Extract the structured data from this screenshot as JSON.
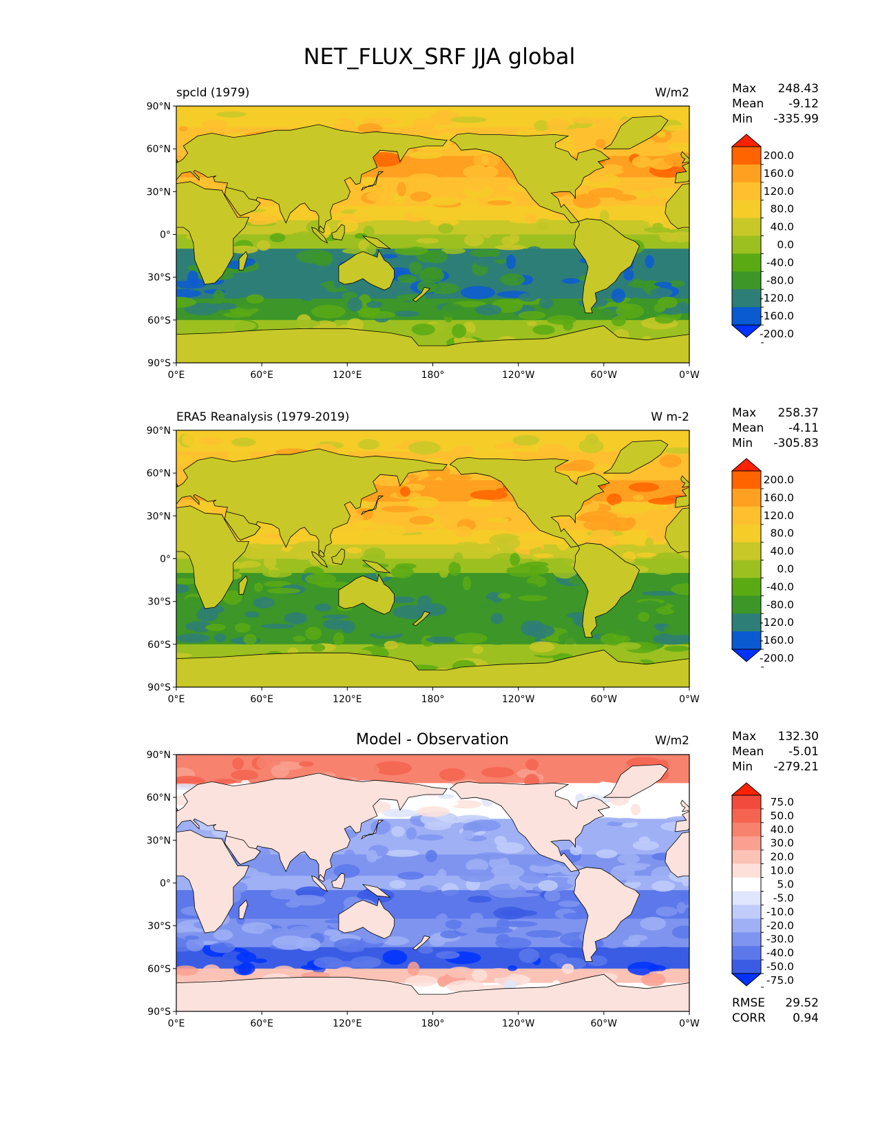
{
  "figure": {
    "title": "NET_FLUX_SRF JJA global",
    "lat_ticks": [
      "90°N",
      "60°N",
      "30°N",
      "0°",
      "30°S",
      "60°S",
      "90°S"
    ],
    "lon_ticks": [
      "0°E",
      "60°E",
      "120°E",
      "180°",
      "120°W",
      "60°W",
      "0°W"
    ]
  },
  "chart_data": [
    {
      "type": "heatmap",
      "name": "model",
      "title": "",
      "subtitle_left": "spcld (1979)",
      "units": "W/m2",
      "stats": [
        {
          "label": "Max",
          "value": "248.43"
        },
        {
          "label": "Mean",
          "value": "-9.12"
        },
        {
          "label": "Min",
          "value": "-335.99"
        }
      ],
      "colorbar": {
        "levels": [
          "200.0",
          "160.0",
          "120.0",
          "80.0",
          "40.0",
          "0.0",
          "-40.0",
          "-80.0",
          "-120.0",
          "-160.0",
          "-200.0"
        ],
        "colors": [
          "#ff2200",
          "#ff6400",
          "#ffa020",
          "#ffc030",
          "#f5cc28",
          "#c8c828",
          "#9cc020",
          "#5aaa14",
          "#3c9628",
          "#2e7e78",
          "#0a5ad2",
          "#0032ff"
        ]
      },
      "xlim": [
        0,
        360
      ],
      "ylim": [
        -90,
        90
      ]
    },
    {
      "type": "heatmap",
      "name": "observation",
      "title": "",
      "subtitle_left": "ERA5 Reanalysis (1979-2019)",
      "units": "W m-2",
      "stats": [
        {
          "label": "Max",
          "value": "258.37"
        },
        {
          "label": "Mean",
          "value": "-4.11"
        },
        {
          "label": "Min",
          "value": "-305.83"
        }
      ],
      "colorbar": {
        "levels": [
          "200.0",
          "160.0",
          "120.0",
          "80.0",
          "40.0",
          "0.0",
          "-40.0",
          "-80.0",
          "-120.0",
          "-160.0",
          "-200.0"
        ],
        "colors": [
          "#ff2200",
          "#ff6400",
          "#ffa020",
          "#ffc030",
          "#f5cc28",
          "#c8c828",
          "#9cc020",
          "#5aaa14",
          "#3c9628",
          "#2e7e78",
          "#0a5ad2",
          "#0032ff"
        ]
      },
      "xlim": [
        0,
        360
      ],
      "ylim": [
        -90,
        90
      ]
    },
    {
      "type": "heatmap",
      "name": "difference",
      "title": "Model - Observation",
      "subtitle_left": "",
      "units": "W/m2",
      "stats": [
        {
          "label": "Max",
          "value": "132.30"
        },
        {
          "label": "Mean",
          "value": "-5.01"
        },
        {
          "label": "Min",
          "value": "-279.21"
        }
      ],
      "extra_stats": [
        {
          "label": "RMSE",
          "value": "29.52"
        },
        {
          "label": "CORR",
          "value": "0.94"
        }
      ],
      "colorbar": {
        "levels": [
          "75.0",
          "50.0",
          "40.0",
          "30.0",
          "20.0",
          "10.0",
          "5.0",
          "-5.0",
          "-10.0",
          "-20.0",
          "-30.0",
          "-40.0",
          "-50.0",
          "-75.0"
        ],
        "colors": [
          "#ff2200",
          "#f24a3c",
          "#f56450",
          "#f7826e",
          "#f9a090",
          "#fbc2b6",
          "#fde0da",
          "#ffffff",
          "#dfe6fd",
          "#c0ccfa",
          "#9fb0f5",
          "#7e94ef",
          "#5c78ea",
          "#3a5ce4",
          "#0032ff"
        ]
      },
      "xlim": [
        0,
        360
      ],
      "ylim": [
        -90,
        90
      ]
    }
  ]
}
